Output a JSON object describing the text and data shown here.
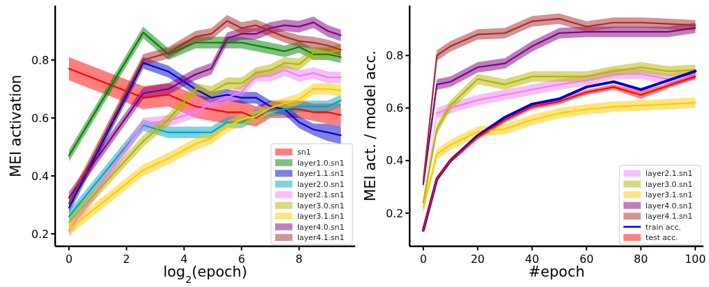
{
  "chart_data": [
    {
      "type": "line",
      "xlabel": "log$_{2}$(epoch)",
      "ylabel": "MEI activation",
      "xlim": [
        -0.48,
        9.95
      ],
      "ylim": [
        0.157,
        0.988
      ],
      "xticks": [
        0,
        2,
        4,
        6,
        8
      ],
      "yticks": [
        0.2,
        0.4,
        0.6,
        0.8
      ],
      "legend": "bottom right",
      "grid": false,
      "marker": "none",
      "line_style": "solid",
      "x": [
        0,
        2.58,
        3.46,
        4.39,
        4.95,
        5.5,
        6,
        6.5,
        7,
        7.5,
        8,
        8.5,
        9,
        9.45
      ],
      "series": [
        {
          "name": "sn1",
          "color": "#ff0000",
          "values": [
            0.77,
            0.67,
            0.68,
            0.64,
            0.63,
            0.62,
            0.62,
            0.6,
            0.63,
            0.63,
            0.63,
            0.62,
            0.62,
            0.61
          ],
          "lower": [
            0.73,
            0.63,
            0.64,
            0.6,
            0.59,
            0.58,
            0.58,
            0.57,
            0.6,
            0.6,
            0.6,
            0.59,
            0.58,
            0.57
          ],
          "upper": [
            0.81,
            0.71,
            0.72,
            0.68,
            0.67,
            0.66,
            0.66,
            0.64,
            0.66,
            0.66,
            0.66,
            0.65,
            0.65,
            0.65
          ]
        },
        {
          "name": "layer1.0.sn1",
          "color": "#008000",
          "values": [
            0.47,
            0.895,
            0.82,
            0.86,
            0.86,
            0.86,
            0.86,
            0.85,
            0.84,
            0.83,
            0.845,
            0.82,
            0.82,
            0.81
          ],
          "lower": [
            0.45,
            0.875,
            0.8,
            0.84,
            0.84,
            0.84,
            0.84,
            0.83,
            0.82,
            0.81,
            0.825,
            0.8,
            0.8,
            0.79
          ],
          "upper": [
            0.49,
            0.915,
            0.84,
            0.88,
            0.88,
            0.88,
            0.88,
            0.87,
            0.86,
            0.85,
            0.865,
            0.84,
            0.84,
            0.83
          ]
        },
        {
          "name": "layer1.1.sn1",
          "color": "#0000cd",
          "values": [
            0.29,
            0.79,
            0.76,
            0.7,
            0.67,
            0.68,
            0.67,
            0.67,
            0.64,
            0.63,
            0.585,
            0.56,
            0.55,
            0.54
          ],
          "lower": [
            0.27,
            0.77,
            0.74,
            0.68,
            0.65,
            0.66,
            0.65,
            0.65,
            0.62,
            0.61,
            0.565,
            0.54,
            0.52,
            0.51
          ],
          "upper": [
            0.31,
            0.81,
            0.78,
            0.72,
            0.69,
            0.7,
            0.69,
            0.69,
            0.66,
            0.65,
            0.605,
            0.58,
            0.58,
            0.57
          ]
        },
        {
          "name": "layer2.0.sn1",
          "color": "#00a6bf",
          "values": [
            0.26,
            0.575,
            0.55,
            0.55,
            0.55,
            0.585,
            0.585,
            0.61,
            0.625,
            0.63,
            0.64,
            0.64,
            0.64,
            0.66
          ],
          "lower": [
            0.24,
            0.555,
            0.53,
            0.53,
            0.53,
            0.565,
            0.565,
            0.59,
            0.605,
            0.61,
            0.62,
            0.62,
            0.62,
            0.64
          ],
          "upper": [
            0.28,
            0.595,
            0.57,
            0.57,
            0.57,
            0.605,
            0.605,
            0.63,
            0.645,
            0.65,
            0.66,
            0.66,
            0.66,
            0.68
          ]
        },
        {
          "name": "layer2.1.sn1",
          "color": "#ee82ee",
          "values": [
            0.21,
            0.58,
            0.59,
            0.62,
            0.65,
            0.67,
            0.69,
            0.745,
            0.745,
            0.765,
            0.745,
            0.755,
            0.74,
            0.74
          ],
          "lower": [
            0.19,
            0.56,
            0.57,
            0.6,
            0.63,
            0.65,
            0.67,
            0.725,
            0.725,
            0.745,
            0.725,
            0.735,
            0.72,
            0.72
          ],
          "upper": [
            0.23,
            0.6,
            0.61,
            0.64,
            0.67,
            0.69,
            0.71,
            0.765,
            0.765,
            0.785,
            0.765,
            0.775,
            0.76,
            0.76
          ]
        },
        {
          "name": "layer3.0.sn1",
          "color": "#b3b300",
          "values": [
            0.24,
            0.52,
            0.595,
            0.7,
            0.69,
            0.72,
            0.72,
            0.755,
            0.765,
            0.79,
            0.785,
            0.825,
            0.825,
            0.835
          ],
          "lower": [
            0.22,
            0.5,
            0.575,
            0.68,
            0.67,
            0.7,
            0.7,
            0.735,
            0.745,
            0.77,
            0.765,
            0.805,
            0.805,
            0.815
          ],
          "upper": [
            0.26,
            0.54,
            0.615,
            0.72,
            0.71,
            0.74,
            0.74,
            0.775,
            0.785,
            0.81,
            0.805,
            0.845,
            0.845,
            0.855
          ]
        },
        {
          "name": "layer3.1.sn1",
          "color": "#ffcc00",
          "values": [
            0.215,
            0.42,
            0.46,
            0.51,
            0.53,
            0.57,
            0.595,
            0.605,
            0.635,
            0.65,
            0.665,
            0.7,
            0.7,
            0.695
          ],
          "lower": [
            0.195,
            0.4,
            0.44,
            0.49,
            0.51,
            0.55,
            0.575,
            0.585,
            0.615,
            0.63,
            0.645,
            0.68,
            0.68,
            0.675
          ],
          "upper": [
            0.235,
            0.44,
            0.48,
            0.53,
            0.55,
            0.59,
            0.615,
            0.625,
            0.655,
            0.67,
            0.685,
            0.72,
            0.72,
            0.715
          ]
        },
        {
          "name": "layer4.0.sn1",
          "color": "#800080",
          "values": [
            0.325,
            0.685,
            0.7,
            0.75,
            0.77,
            0.875,
            0.89,
            0.89,
            0.91,
            0.92,
            0.915,
            0.93,
            0.9,
            0.885
          ],
          "lower": [
            0.305,
            0.665,
            0.68,
            0.73,
            0.75,
            0.855,
            0.87,
            0.87,
            0.89,
            0.9,
            0.895,
            0.91,
            0.88,
            0.865
          ],
          "upper": [
            0.345,
            0.705,
            0.72,
            0.77,
            0.79,
            0.895,
            0.91,
            0.91,
            0.93,
            0.94,
            0.935,
            0.95,
            0.92,
            0.905
          ]
        },
        {
          "name": "layer4.1.sn1",
          "color": "#a52a2a",
          "values": [
            0.305,
            0.8,
            0.825,
            0.88,
            0.89,
            0.935,
            0.91,
            0.92,
            0.9,
            0.88,
            0.865,
            0.86,
            0.85,
            0.835
          ],
          "lower": [
            0.285,
            0.78,
            0.805,
            0.86,
            0.87,
            0.915,
            0.89,
            0.9,
            0.88,
            0.86,
            0.845,
            0.84,
            0.83,
            0.815
          ],
          "upper": [
            0.325,
            0.82,
            0.845,
            0.9,
            0.91,
            0.955,
            0.93,
            0.94,
            0.92,
            0.9,
            0.885,
            0.88,
            0.87,
            0.855
          ]
        }
      ]
    },
    {
      "type": "line",
      "xlabel": "#epoch",
      "ylabel": "MEI act. / model acc.",
      "xlim": [
        -5,
        103
      ],
      "ylim": [
        0.074,
        0.99
      ],
      "xticks": [
        0,
        20,
        40,
        60,
        80,
        100
      ],
      "yticks": [
        0.2,
        0.4,
        0.6,
        0.8
      ],
      "legend": "bottom right",
      "grid": false,
      "marker": "none",
      "line_style": "solid",
      "x": [
        0,
        5,
        10,
        20,
        30,
        40,
        50,
        60,
        70,
        80,
        90,
        100
      ],
      "series": [
        {
          "name": "layer2.1.sn1",
          "color": "#ee82ee",
          "values": [
            null,
            0.58,
            0.6,
            0.63,
            0.65,
            0.67,
            0.69,
            0.705,
            0.73,
            0.73,
            0.71,
            0.73
          ],
          "lower": [
            0.2,
            0.56,
            0.58,
            0.61,
            0.63,
            0.65,
            0.67,
            0.685,
            0.71,
            0.71,
            0.69,
            0.71
          ],
          "upper": [
            0.24,
            0.6,
            0.62,
            0.65,
            0.67,
            0.69,
            0.71,
            0.725,
            0.75,
            0.75,
            0.73,
            0.75
          ]
        },
        {
          "name": "layer3.0.sn1",
          "color": "#b3b300",
          "values": [
            0.24,
            0.52,
            0.61,
            0.71,
            0.69,
            0.72,
            0.72,
            0.72,
            0.74,
            0.755,
            0.74,
            0.745
          ],
          "lower": [
            0.22,
            0.5,
            0.59,
            0.69,
            0.67,
            0.7,
            0.7,
            0.7,
            0.72,
            0.735,
            0.72,
            0.725
          ],
          "upper": [
            0.26,
            0.54,
            0.63,
            0.73,
            0.71,
            0.74,
            0.74,
            0.74,
            0.76,
            0.775,
            0.76,
            0.765
          ]
        },
        {
          "name": "layer3.1.sn1",
          "color": "#ffcc00",
          "values": [
            0.22,
            0.425,
            0.46,
            0.51,
            0.52,
            0.555,
            0.58,
            0.595,
            0.605,
            0.61,
            0.615,
            0.62
          ],
          "lower": [
            0.2,
            0.405,
            0.44,
            0.49,
            0.5,
            0.535,
            0.56,
            0.575,
            0.585,
            0.59,
            0.595,
            0.6
          ],
          "upper": [
            0.24,
            0.445,
            0.48,
            0.53,
            0.54,
            0.575,
            0.6,
            0.615,
            0.625,
            0.63,
            0.635,
            0.64
          ]
        },
        {
          "name": "layer4.0.sn1",
          "color": "#800080",
          "values": [
            0.31,
            0.69,
            0.7,
            0.755,
            0.77,
            0.835,
            0.885,
            0.89,
            0.89,
            0.89,
            0.89,
            0.905
          ],
          "lower": [
            0.29,
            0.67,
            0.68,
            0.735,
            0.75,
            0.815,
            0.865,
            0.87,
            0.87,
            0.87,
            0.87,
            0.885
          ],
          "upper": [
            0.33,
            0.71,
            0.72,
            0.775,
            0.79,
            0.855,
            0.905,
            0.91,
            0.91,
            0.91,
            0.91,
            0.925
          ]
        },
        {
          "name": "layer4.1.sn1",
          "color": "#a52a2a",
          "values": [
            0.32,
            0.8,
            0.835,
            0.88,
            0.885,
            0.93,
            0.94,
            0.91,
            0.925,
            0.925,
            0.92,
            0.915
          ],
          "lower": [
            0.3,
            0.78,
            0.815,
            0.86,
            0.865,
            0.91,
            0.92,
            0.89,
            0.905,
            0.905,
            0.9,
            0.895
          ],
          "upper": [
            0.34,
            0.82,
            0.855,
            0.9,
            0.905,
            0.95,
            0.96,
            0.93,
            0.945,
            0.945,
            0.94,
            0.935
          ]
        },
        {
          "name": "train acc.",
          "color": "#0000cd",
          "values": [
            0.135,
            0.33,
            0.4,
            0.495,
            0.565,
            0.615,
            0.635,
            0.68,
            0.7,
            0.67,
            0.705,
            0.74
          ]
        },
        {
          "name": "test acc.",
          "color": "#ff0000",
          "values": [
            0.135,
            0.33,
            0.4,
            0.49,
            0.555,
            0.605,
            0.625,
            0.66,
            0.68,
            0.65,
            0.685,
            0.72
          ],
          "lower": [
            0.125,
            0.32,
            0.39,
            0.48,
            0.545,
            0.595,
            0.615,
            0.65,
            0.67,
            0.635,
            0.675,
            0.71
          ],
          "upper": [
            0.145,
            0.34,
            0.41,
            0.5,
            0.565,
            0.615,
            0.635,
            0.67,
            0.69,
            0.665,
            0.695,
            0.73
          ]
        }
      ]
    }
  ]
}
